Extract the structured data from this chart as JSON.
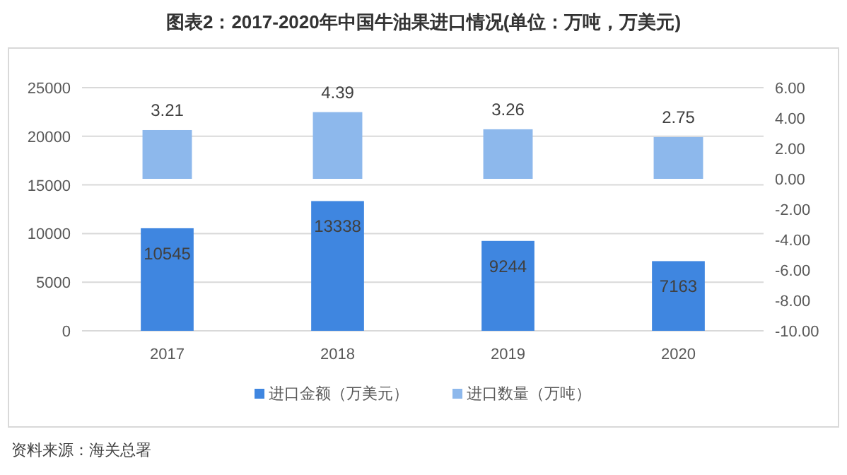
{
  "chart_data": {
    "type": "bar",
    "title": "图表2：2017-2020年中国牛油果进口情况(单位：万吨，万美元)",
    "categories": [
      "2017",
      "2018",
      "2019",
      "2020"
    ],
    "series": [
      {
        "name": "进口金额（万美元）",
        "color": "#3f86e0",
        "values": [
          10545,
          13338,
          9244,
          7163
        ]
      },
      {
        "name": "进口数量（万吨）",
        "color": "#8db8ec",
        "values": [
          3.21,
          4.39,
          3.26,
          2.75
        ],
        "axis": "y2"
      }
    ],
    "ylim": [
      0,
      25000
    ],
    "yticks": [
      0,
      5000,
      10000,
      15000,
      20000,
      25000
    ],
    "y2lim": [
      -10,
      6
    ],
    "y2ticks": [
      {
        "value": -10,
        "label": "-10.00"
      },
      {
        "value": -8,
        "label": "-8.00"
      },
      {
        "value": -6,
        "label": "-6.00"
      },
      {
        "value": -4,
        "label": "-4.00"
      },
      {
        "value": -2,
        "label": "-2.00"
      },
      {
        "value": 0,
        "label": "0.00"
      },
      {
        "value": 2,
        "label": "2.00"
      },
      {
        "value": 4,
        "label": "4.00"
      },
      {
        "value": 6,
        "label": "6.00"
      }
    ],
    "grid": "y",
    "legend": "bottom",
    "data_labels": true,
    "annotations": [
      "资料来源：海关总署"
    ]
  }
}
